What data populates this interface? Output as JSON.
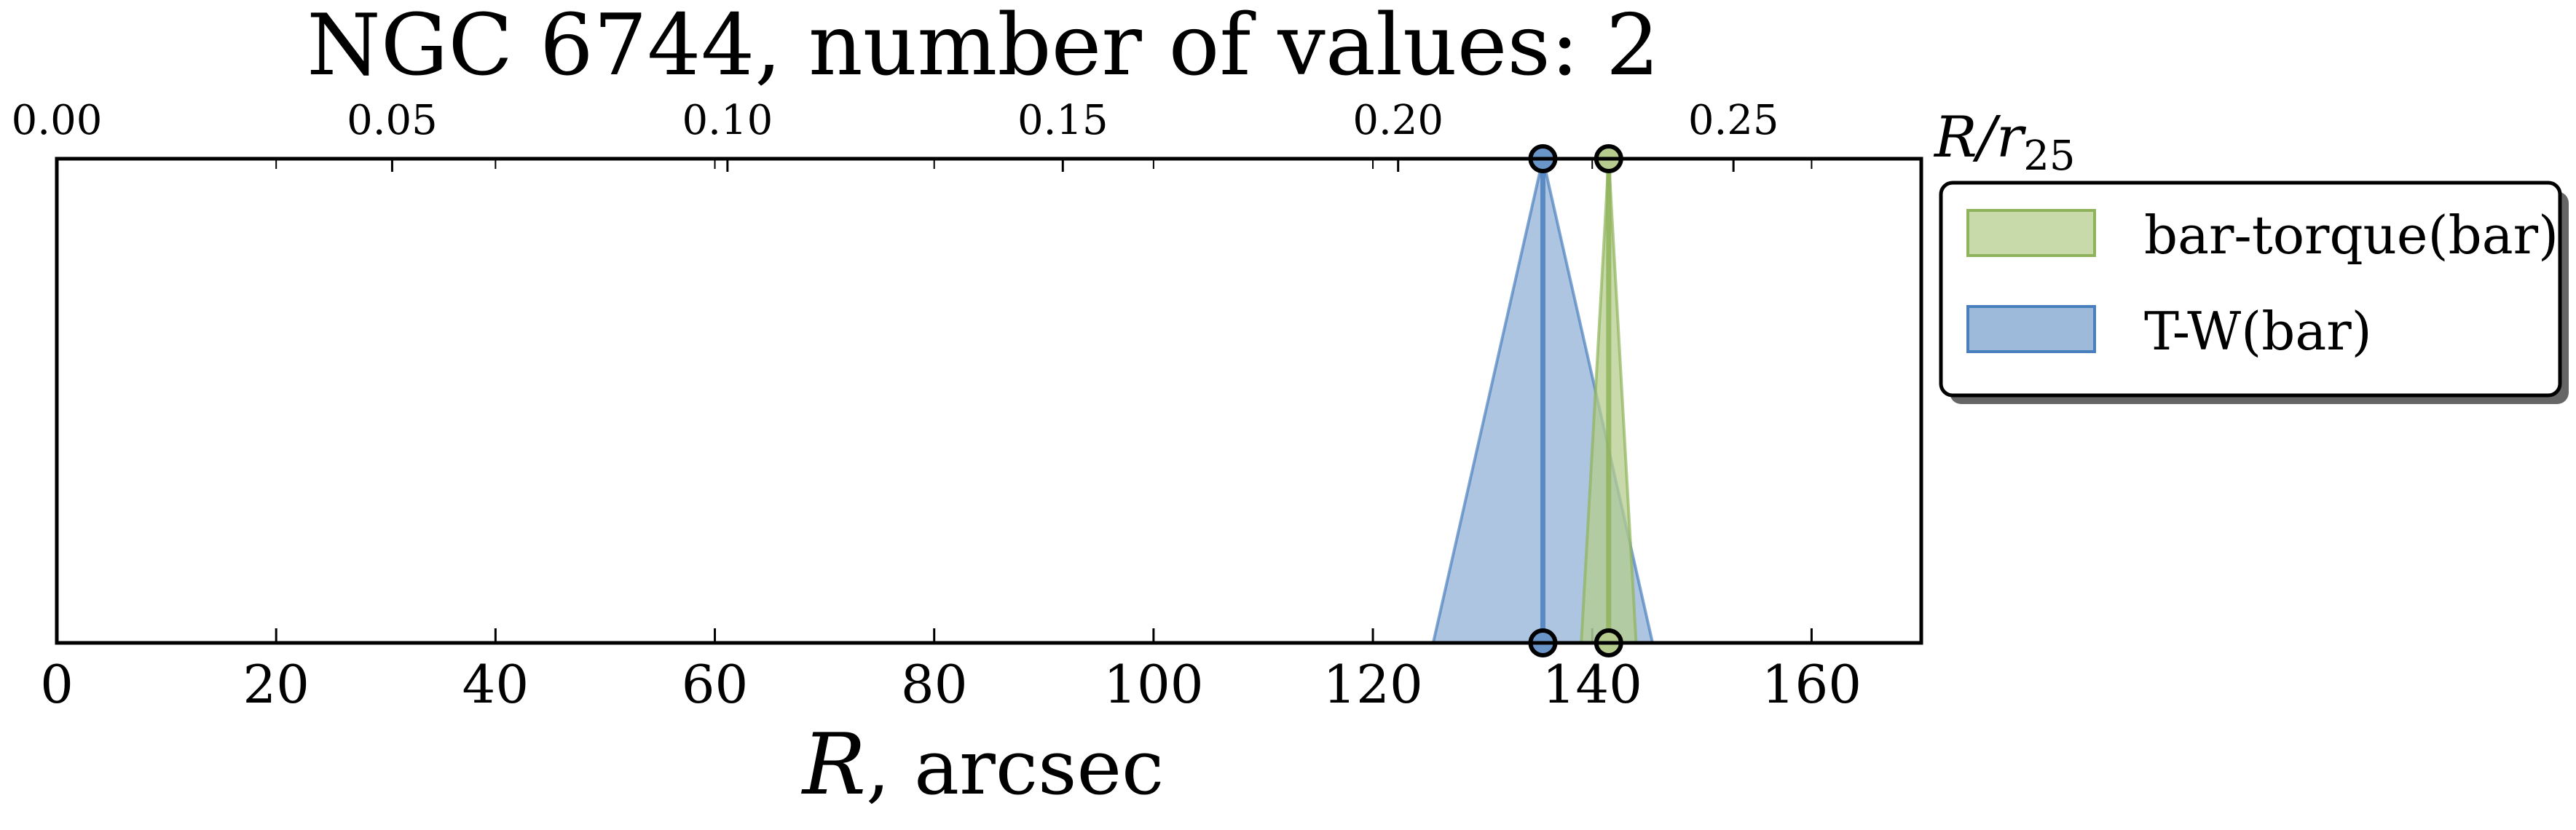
{
  "chart_data": {
    "type": "area",
    "title": "NGC 6744, number of values: 2",
    "xlabel_symbol": "R",
    "xlabel_unit": ", arcsec",
    "top_axis_label_symbol": "R/r",
    "top_axis_label_subscript": "25",
    "xlim": [
      0,
      170
    ],
    "top_axis_lim": [
      0.0,
      0.278
    ],
    "bottom_ticks": [
      0,
      20,
      40,
      60,
      80,
      100,
      120,
      140,
      160
    ],
    "bottom_tick_labels": [
      "0",
      "20",
      "40",
      "60",
      "80",
      "100",
      "120",
      "140",
      "160"
    ],
    "top_ticks": [
      0.0,
      0.05,
      0.1,
      0.15,
      0.2,
      0.25
    ],
    "top_tick_labels": [
      "0.00",
      "0.05",
      "0.10",
      "0.15",
      "0.20",
      "0.25"
    ],
    "grid": false,
    "legend_position": "outside right, top",
    "series": [
      {
        "name": "bar-torque(bar)",
        "color": "#b5cc8e",
        "edge_color": "#8fb35b",
        "center": 141.5,
        "base_min": 139.0,
        "base_max": 144.0
      },
      {
        "name": "T-W(bar)",
        "color": "#6a95c8",
        "edge_color": "#4a7fbd",
        "center": 135.5,
        "base_min": 125.5,
        "base_max": 145.5
      }
    ]
  }
}
